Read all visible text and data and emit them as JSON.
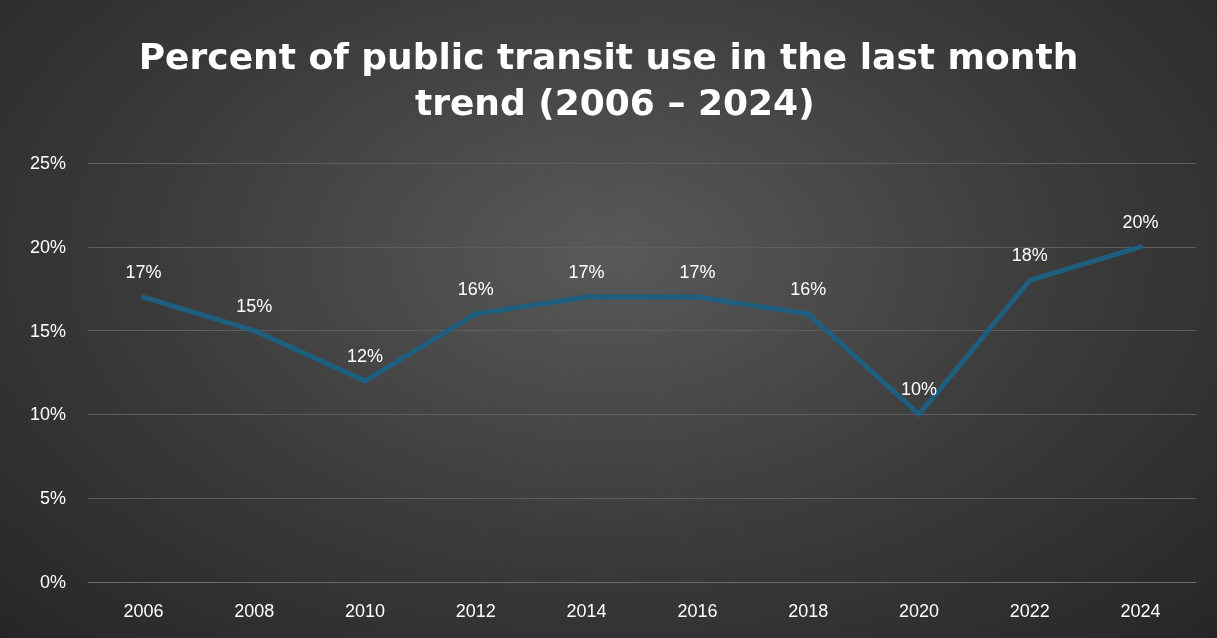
{
  "chart_data": {
    "type": "line",
    "title": "Percent of public transit use in the last month trend (2006 – 2024)",
    "categories": [
      "2006",
      "2008",
      "2010",
      "2012",
      "2014",
      "2016",
      "2018",
      "2020",
      "2022",
      "2024"
    ],
    "series": [
      {
        "color": "#1e5f80",
        "values": [
          17,
          15,
          12,
          16,
          17,
          17,
          16,
          10,
          18,
          20
        ],
        "value_labels": [
          "17%",
          "15%",
          "12%",
          "16%",
          "17%",
          "17%",
          "16%",
          "10%",
          "18%",
          "20%"
        ]
      }
    ],
    "ylim": [
      0,
      25
    ],
    "yticks": [
      {
        "value": 0,
        "label": "0%"
      },
      {
        "value": 5,
        "label": "5%"
      },
      {
        "value": 10,
        "label": "10%"
      },
      {
        "value": 15,
        "label": "15%"
      },
      {
        "value": 20,
        "label": "20%"
      },
      {
        "value": 25,
        "label": "25%"
      }
    ],
    "grid": "y",
    "marker": "none",
    "line_style": "solid"
  }
}
